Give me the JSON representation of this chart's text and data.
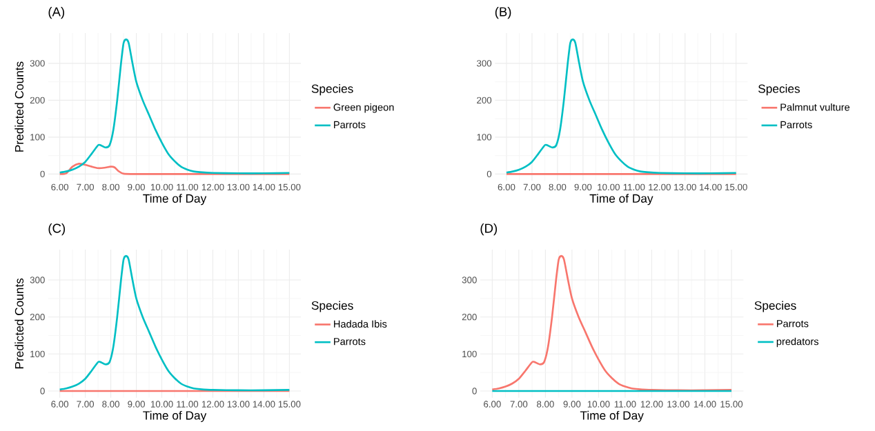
{
  "chart_data": [
    {
      "type": "line",
      "title": "(A)",
      "xlabel": "Time of Day",
      "ylabel": "Predicted Counts",
      "legend_title": "Species",
      "legend": "right",
      "grid": true,
      "xlim": [
        5.55,
        15.45
      ],
      "ylim": [
        -18,
        382
      ],
      "xticks": [
        {
          "value": 6,
          "label": "6.00"
        },
        {
          "value": 7,
          "label": "7.00"
        },
        {
          "value": 8,
          "label": "8.00"
        },
        {
          "value": 9,
          "label": "9.00"
        },
        {
          "value": 10,
          "label": "10.00"
        },
        {
          "value": 11,
          "label": "11.00"
        },
        {
          "value": 12,
          "label": "12.00"
        },
        {
          "value": 13,
          "label": "13.00"
        },
        {
          "value": 14,
          "label": "14.00"
        },
        {
          "value": 15,
          "label": "15.00"
        }
      ],
      "yticks": [
        0,
        100,
        200,
        300
      ],
      "series": [
        {
          "name": "Green pigeon",
          "color": "#f8766d",
          "x": [
            6.0,
            6.25,
            6.5,
            6.75,
            7.0,
            7.25,
            7.5,
            7.75,
            8.0,
            8.15,
            8.3,
            8.5,
            9.0,
            10.0,
            12.0,
            15.0
          ],
          "values": [
            0,
            2,
            20,
            28,
            25,
            20,
            16,
            17,
            20,
            18,
            8,
            1,
            0,
            0,
            0,
            0
          ]
        },
        {
          "name": "Parrots",
          "color": "#00bfc4",
          "x": [
            6.0,
            6.25,
            6.5,
            6.75,
            7.0,
            7.25,
            7.5,
            7.6,
            7.8,
            7.95,
            8.1,
            8.25,
            8.4,
            8.5,
            8.6,
            8.7,
            8.85,
            9.0,
            9.25,
            9.5,
            9.75,
            10.0,
            10.25,
            10.5,
            10.75,
            11.0,
            11.25,
            11.5,
            12.0,
            13.0,
            14.0,
            15.0
          ],
          "values": [
            4,
            7,
            12,
            20,
            33,
            55,
            78,
            78,
            72,
            78,
            120,
            200,
            300,
            355,
            365,
            355,
            300,
            250,
            200,
            160,
            120,
            85,
            55,
            35,
            20,
            12,
            7,
            5,
            3,
            2,
            2,
            3
          ]
        }
      ]
    },
    {
      "type": "line",
      "title": "(B)",
      "xlabel": "Time of Day",
      "legend_title": "Species",
      "legend": "right",
      "grid": true,
      "xlim": [
        5.55,
        15.45
      ],
      "ylim": [
        -18,
        382
      ],
      "xticks": [
        {
          "value": 6,
          "label": "6.00"
        },
        {
          "value": 7,
          "label": "7.00"
        },
        {
          "value": 8,
          "label": "8.00"
        },
        {
          "value": 9,
          "label": "9.00"
        },
        {
          "value": 10,
          "label": "10.00"
        },
        {
          "value": 11,
          "label": "11.00"
        },
        {
          "value": 12,
          "label": "12.00"
        },
        {
          "value": 13,
          "label": "13.00"
        },
        {
          "value": 14,
          "label": "14.00"
        },
        {
          "value": 15,
          "label": "15.00"
        }
      ],
      "yticks": [
        0,
        100,
        200,
        300
      ],
      "series": [
        {
          "name": "Palmnut vulture",
          "color": "#f8766d",
          "x": [
            6.0,
            9.0,
            12.0,
            15.0
          ],
          "values": [
            0,
            0,
            0,
            0
          ]
        },
        {
          "name": "Parrots",
          "color": "#00bfc4",
          "x": [
            6.0,
            6.25,
            6.5,
            6.75,
            7.0,
            7.25,
            7.5,
            7.6,
            7.8,
            7.95,
            8.1,
            8.25,
            8.4,
            8.5,
            8.6,
            8.7,
            8.85,
            9.0,
            9.25,
            9.5,
            9.75,
            10.0,
            10.25,
            10.5,
            10.75,
            11.0,
            11.25,
            11.5,
            12.0,
            13.0,
            14.0,
            15.0
          ],
          "values": [
            4,
            7,
            12,
            20,
            33,
            55,
            78,
            78,
            72,
            78,
            120,
            200,
            300,
            355,
            365,
            355,
            300,
            250,
            200,
            160,
            120,
            85,
            55,
            35,
            20,
            12,
            7,
            5,
            3,
            2,
            2,
            3
          ]
        }
      ]
    },
    {
      "type": "line",
      "title": "(C)",
      "xlabel": "Time of Day",
      "ylabel": "Predicted Counts",
      "legend_title": "Species",
      "legend": "right",
      "grid": true,
      "xlim": [
        5.55,
        15.45
      ],
      "ylim": [
        -18,
        382
      ],
      "xticks": [
        {
          "value": 6,
          "label": "6.00"
        },
        {
          "value": 7,
          "label": "7.00"
        },
        {
          "value": 8,
          "label": "8.00"
        },
        {
          "value": 9,
          "label": "9.00"
        },
        {
          "value": 10,
          "label": "10.00"
        },
        {
          "value": 11,
          "label": "11.00"
        },
        {
          "value": 12,
          "label": "12.00"
        },
        {
          "value": 13,
          "label": "13.00"
        },
        {
          "value": 14,
          "label": "14.00"
        },
        {
          "value": 15,
          "label": "15.00"
        }
      ],
      "yticks": [
        0,
        100,
        200,
        300
      ],
      "series": [
        {
          "name": "Hadada Ibis",
          "color": "#f8766d",
          "x": [
            6.0,
            9.0,
            12.0,
            15.0
          ],
          "values": [
            0,
            0,
            0,
            0
          ]
        },
        {
          "name": "Parrots",
          "color": "#00bfc4",
          "x": [
            6.0,
            6.25,
            6.5,
            6.75,
            7.0,
            7.25,
            7.5,
            7.6,
            7.8,
            7.95,
            8.1,
            8.25,
            8.4,
            8.5,
            8.6,
            8.7,
            8.85,
            9.0,
            9.25,
            9.5,
            9.75,
            10.0,
            10.25,
            10.5,
            10.75,
            11.0,
            11.25,
            11.5,
            12.0,
            13.0,
            14.0,
            15.0
          ],
          "values": [
            4,
            7,
            12,
            20,
            33,
            55,
            78,
            78,
            72,
            78,
            120,
            200,
            300,
            355,
            365,
            355,
            300,
            250,
            200,
            160,
            120,
            85,
            55,
            35,
            20,
            12,
            7,
            5,
            3,
            2,
            2,
            3
          ]
        }
      ]
    },
    {
      "type": "line",
      "title": "(D)",
      "xlabel": "Time of Day",
      "legend_title": "Species",
      "legend": "right",
      "grid": true,
      "xlim": [
        5.55,
        15.45
      ],
      "ylim": [
        -18,
        382
      ],
      "xticks": [
        {
          "value": 6,
          "label": "6.00"
        },
        {
          "value": 7,
          "label": "7.00"
        },
        {
          "value": 8,
          "label": "8.00"
        },
        {
          "value": 9,
          "label": "9.00"
        },
        {
          "value": 10,
          "label": "10.00"
        },
        {
          "value": 11,
          "label": "11.00"
        },
        {
          "value": 12,
          "label": "12.00"
        },
        {
          "value": 13,
          "label": "13.00"
        },
        {
          "value": 14,
          "label": "14.00"
        },
        {
          "value": 15,
          "label": "15.00"
        }
      ],
      "yticks": [
        0,
        100,
        200,
        300
      ],
      "series": [
        {
          "name": "Parrots",
          "color": "#f8766d",
          "x": [
            6.0,
            6.25,
            6.5,
            6.75,
            7.0,
            7.25,
            7.5,
            7.6,
            7.8,
            7.95,
            8.1,
            8.25,
            8.4,
            8.5,
            8.6,
            8.7,
            8.85,
            9.0,
            9.25,
            9.5,
            9.75,
            10.0,
            10.25,
            10.5,
            10.75,
            11.0,
            11.25,
            11.5,
            12.0,
            13.0,
            14.0,
            15.0
          ],
          "values": [
            4,
            7,
            12,
            20,
            33,
            55,
            78,
            78,
            72,
            78,
            120,
            200,
            300,
            355,
            365,
            355,
            300,
            250,
            200,
            160,
            120,
            85,
            55,
            35,
            20,
            12,
            7,
            5,
            3,
            2,
            2,
            3
          ]
        },
        {
          "name": "predators",
          "color": "#00bfc4",
          "x": [
            6.0,
            9.0,
            12.0,
            15.0
          ],
          "values": [
            0,
            0,
            0,
            0
          ]
        }
      ]
    }
  ]
}
